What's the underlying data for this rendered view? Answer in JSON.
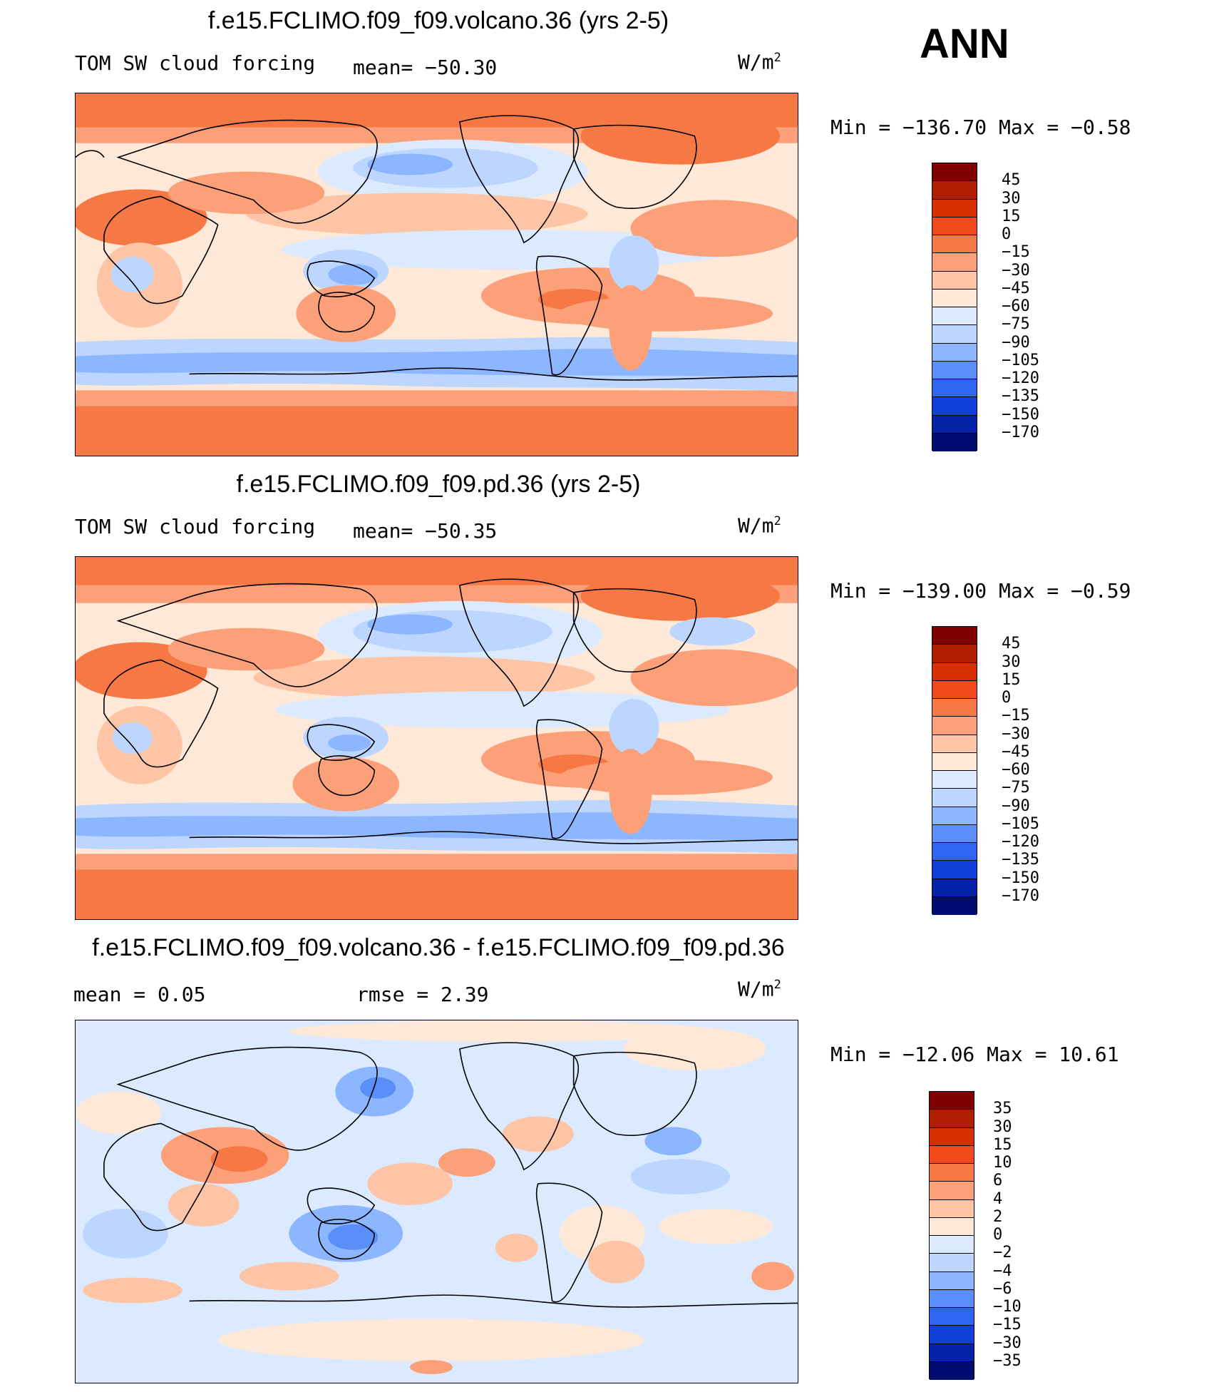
{
  "season": "ANN",
  "units_base": "W/m",
  "units_exp": "2",
  "panels": [
    {
      "title": "f.e15.FCLIMO.f09_f09.volcano.36 (yrs 2-5)",
      "variable": "TOM SW cloud forcing",
      "stat_left": "",
      "mean_text": "mean= −50.30",
      "min_max": "Min = −136.70 Max =  −0.58",
      "ticks": [
        "45",
        "30",
        "15",
        "0",
        "−15",
        "−30",
        "−45",
        "−60",
        "−75",
        "−90",
        "−105",
        "−120",
        "−135",
        "−150",
        "−170"
      ],
      "colors": [
        "#800000",
        "#b01e00",
        "#d63000",
        "#f04a1a",
        "#f67844",
        "#fca07a",
        "#fdc4a6",
        "#fee8d8",
        "#dceaff",
        "#bcd6ff",
        "#8cb6ff",
        "#5a8ef8",
        "#2e66f0",
        "#1040d8",
        "#0522a8",
        "#000c70"
      ]
    },
    {
      "title": "f.e15.FCLIMO.f09_f09.pd.36 (yrs 2-5)",
      "variable": "TOM SW cloud forcing",
      "stat_left": "",
      "mean_text": "mean= −50.35",
      "min_max": "Min = −139.00 Max =  −0.59",
      "ticks": [
        "45",
        "30",
        "15",
        "0",
        "−15",
        "−30",
        "−45",
        "−60",
        "−75",
        "−90",
        "−105",
        "−120",
        "−135",
        "−150",
        "−170"
      ],
      "colors": [
        "#800000",
        "#b01e00",
        "#d63000",
        "#f04a1a",
        "#f67844",
        "#fca07a",
        "#fdc4a6",
        "#fee8d8",
        "#dceaff",
        "#bcd6ff",
        "#8cb6ff",
        "#5a8ef8",
        "#2e66f0",
        "#1040d8",
        "#0522a8",
        "#000c70"
      ]
    },
    {
      "title": "f.e15.FCLIMO.f09_f09.volcano.36 - f.e15.FCLIMO.f09_f09.pd.36",
      "variable": "",
      "stat_left": "mean =    0.05",
      "mean_text": "rmse =    2.39",
      "min_max": "Min = −12.06 Max =   10.61",
      "ticks": [
        "35",
        "30",
        "15",
        "10",
        "6",
        "4",
        "2",
        "0",
        "−2",
        "−4",
        "−6",
        "−10",
        "−15",
        "−30",
        "−35"
      ],
      "colors": [
        "#800000",
        "#b01e00",
        "#d63000",
        "#f04a1a",
        "#f67844",
        "#fca07a",
        "#fdc4a6",
        "#fee8d8",
        "#dceaff",
        "#bcd6ff",
        "#8cb6ff",
        "#5a8ef8",
        "#2e66f0",
        "#1040d8",
        "#0522a8",
        "#000c70"
      ]
    }
  ]
}
